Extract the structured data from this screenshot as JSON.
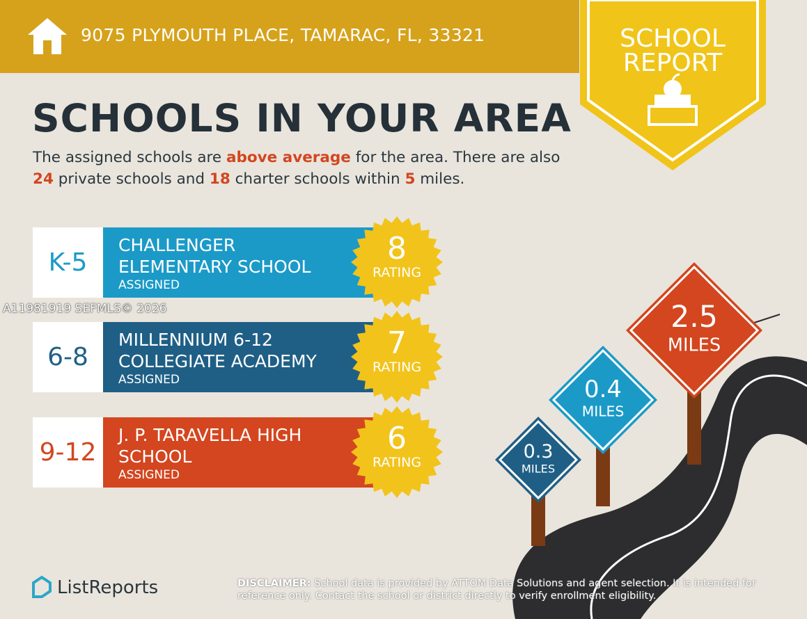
{
  "header": {
    "address": "9075 PLYMOUTH PLACE, TAMARAC, FL, 33321"
  },
  "badge": {
    "lines": [
      "SCHOOL",
      "REPORT"
    ]
  },
  "title": "SCHOOLS IN YOUR AREA",
  "intro": {
    "highlight_color": "#d3461f",
    "segments": [
      {
        "text": "The assigned schools are ",
        "highlight": false
      },
      {
        "text": "above average",
        "highlight": true
      },
      {
        "text": " for the area. There are also ",
        "highlight": false
      },
      {
        "text": "24",
        "highlight": true
      },
      {
        "text": " private schools and ",
        "highlight": false
      },
      {
        "text": "18",
        "highlight": true
      },
      {
        "text": " charter schools within ",
        "highlight": false
      },
      {
        "text": "5",
        "highlight": true
      },
      {
        "text": " miles.",
        "highlight": false
      }
    ]
  },
  "schools": [
    {
      "grade": "K-5",
      "name_lines": [
        "CHALLENGER",
        "ELEMENTARY SCHOOL"
      ],
      "status": "ASSIGNED",
      "rating": 8,
      "rating_label": "RATING",
      "color": "#1b9ac8"
    },
    {
      "grade": "6-8",
      "name_lines": [
        "MILLENNIUM 6-12",
        "COLLEGIATE ACADEMY"
      ],
      "status": "ASSIGNED",
      "rating": 7,
      "rating_label": "RATING",
      "color": "#1f5f86"
    },
    {
      "grade": "9-12",
      "name_lines": [
        "J. P. TARAVELLA HIGH",
        "SCHOOL"
      ],
      "status": "ASSIGNED",
      "rating": 6,
      "rating_label": "RATING",
      "color": "#d3461f"
    }
  ],
  "signs": [
    {
      "distance": 0.3,
      "unit": "MILES",
      "color": "#1f5f86"
    },
    {
      "distance": 0.4,
      "unit": "MILES",
      "color": "#1b9ac8"
    },
    {
      "distance": 2.5,
      "unit": "MILES",
      "color": "#d3461f"
    }
  ],
  "watermark": "A11981919  SEFMLS© 2026",
  "logo": "ListReports",
  "disclaimer": {
    "label": "DISCLAIMER:",
    "text": " School data is provided by ATTOM Data Solutions and agent selection. It is intended for reference only. Contact the school or district directly to verify enrollment eligibility."
  }
}
